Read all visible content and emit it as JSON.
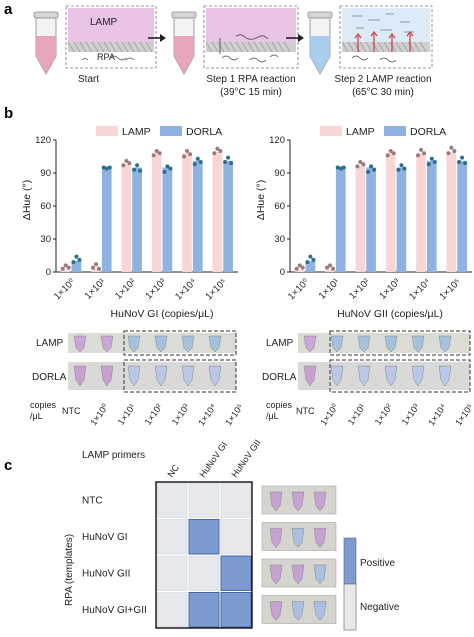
{
  "panel_a": {
    "letter": "a",
    "lamp_label": "LAMP",
    "rpa_label": "RPA",
    "start_label": "Start",
    "step1_title": "Step 1 RPA reaction",
    "step1_sub": "(39°C 15 min)",
    "step2_title": "Step 2 LAMP reaction",
    "step2_sub": "(65°C 30 min)"
  },
  "panel_b": {
    "letter": "b",
    "row_lamp": "LAMP",
    "row_dorla": "DORLA",
    "copies_label_1": "copies",
    "copies_label_2": "/μL",
    "ntc_label": "NTC"
  },
  "chart_data": [
    {
      "type": "bar",
      "title": "",
      "xlabel": "HuNoV GI  (copies/μL)",
      "ylabel": "ΔHue (°)",
      "ylim": [
        0,
        120
      ],
      "yticks": [
        "0",
        "30",
        "60",
        "90",
        "120"
      ],
      "categories": [
        "1×10⁰",
        "1×10¹",
        "1×10²",
        "1×10³",
        "1×10⁴",
        "1×10⁵"
      ],
      "series": [
        {
          "name": "LAMP",
          "color": "#f9d6d6",
          "values": [
            2,
            3,
            98,
            108,
            108,
            109
          ]
        },
        {
          "name": "DORLA",
          "color": "#8fb3e0",
          "values": [
            10,
            95,
            95,
            95,
            101,
            101
          ]
        }
      ],
      "points": {
        "LAMP": [
          [
            3,
            6,
            4
          ],
          [
            4,
            7,
            3
          ],
          [
            97,
            101,
            99
          ],
          [
            106,
            110,
            108
          ],
          [
            105,
            110,
            107
          ],
          [
            108,
            112,
            110
          ]
        ],
        "DORLA": [
          [
            9,
            14,
            11
          ],
          [
            95,
            94,
            95
          ],
          [
            93,
            97,
            92
          ],
          [
            91,
            96,
            94
          ],
          [
            98,
            103,
            100
          ],
          [
            100,
            104,
            99
          ]
        ]
      },
      "legend_position": "top-center"
    },
    {
      "type": "bar",
      "title": "",
      "xlabel": "HuNoV GII  (copies/μL)",
      "ylabel": "ΔHue (°)",
      "ylim": [
        0,
        120
      ],
      "yticks": [
        "0",
        "30",
        "60",
        "90",
        "120"
      ],
      "categories": [
        "1×10⁰",
        "1×10¹",
        "1×10²",
        "1×10³",
        "1×10⁴",
        "1×10⁵"
      ],
      "series": [
        {
          "name": "LAMP",
          "color": "#f9d6d6",
          "values": [
            2,
            2,
            97,
            108,
            108,
            109
          ]
        },
        {
          "name": "DORLA",
          "color": "#8fb3e0",
          "values": [
            10,
            95,
            95,
            95,
            101,
            101
          ]
        }
      ],
      "points": {
        "LAMP": [
          [
            3,
            6,
            4
          ],
          [
            4,
            6,
            3
          ],
          [
            96,
            100,
            98
          ],
          [
            106,
            110,
            108
          ],
          [
            106,
            111,
            108
          ],
          [
            108,
            113,
            110
          ]
        ],
        "DORLA": [
          [
            9,
            14,
            11
          ],
          [
            95,
            94,
            95
          ],
          [
            91,
            96,
            93
          ],
          [
            93,
            97,
            94
          ],
          [
            98,
            103,
            100
          ],
          [
            100,
            104,
            99
          ]
        ]
      },
      "legend_position": "top-center"
    },
    {
      "type": "heatmap",
      "title": "",
      "xlabel": "LAMP primers",
      "ylabel": "RPA (templates)",
      "columns": [
        "NC",
        "HuNoV GI",
        "HuNoV GII"
      ],
      "rows": [
        "NTC",
        "HuNoV GI",
        "HuNoV GII",
        "HuNoV GI+GII"
      ],
      "values": [
        [
          0,
          0,
          0
        ],
        [
          0,
          1,
          0
        ],
        [
          0,
          0,
          1
        ],
        [
          0,
          1,
          1
        ]
      ],
      "legend": [
        "Positive",
        "Negative"
      ],
      "colors": {
        "positive": "#7b9bd1",
        "negative": "#e6e8ec"
      }
    }
  ]
}
